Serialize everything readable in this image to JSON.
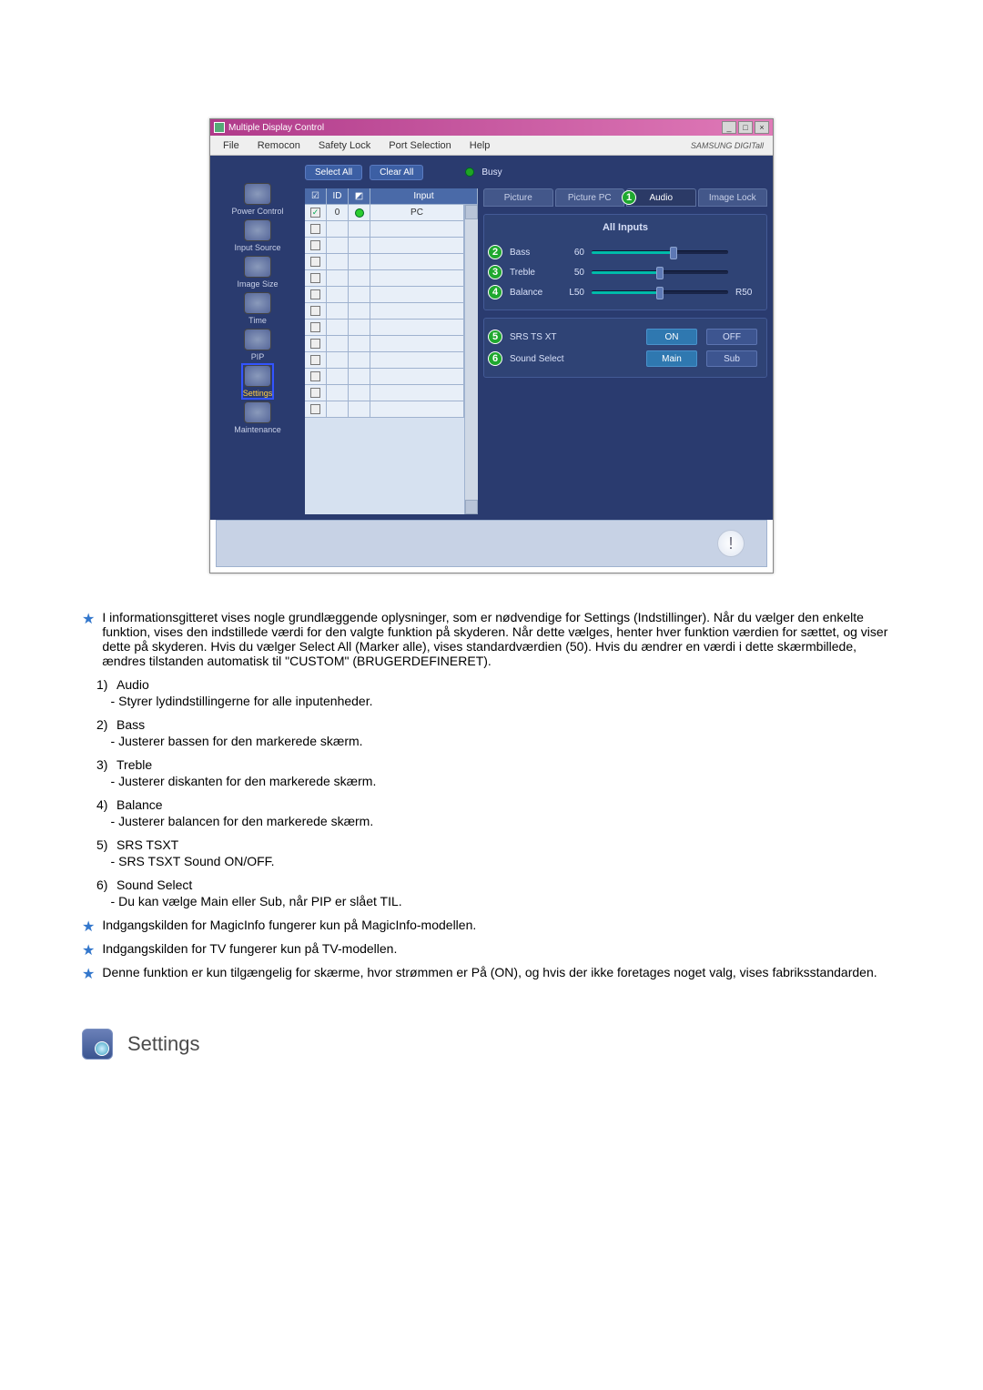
{
  "window_title": "Multiple Display Control",
  "menubar": [
    "File",
    "Remocon",
    "Safety Lock",
    "Port Selection",
    "Help"
  ],
  "brand_text": "SAMSUNG DIGITall",
  "toolbar": {
    "select_all": "Select All",
    "clear_all": "Clear All",
    "busy_label": "Busy"
  },
  "sidebar": [
    {
      "key": "power",
      "label": "Power Control"
    },
    {
      "key": "input",
      "label": "Input Source"
    },
    {
      "key": "image",
      "label": "Image Size"
    },
    {
      "key": "time",
      "label": "Time"
    },
    {
      "key": "pip",
      "label": "PIP"
    },
    {
      "key": "settings",
      "label": "Settings"
    },
    {
      "key": "maintenance",
      "label": "Maintenance"
    }
  ],
  "sidebar_selected": "settings",
  "grid": {
    "columns": [
      "",
      "ID",
      "",
      "Input"
    ],
    "rows": [
      {
        "checked": true,
        "id": "0",
        "status": true,
        "input": "PC"
      },
      {
        "checked": false,
        "id": "",
        "status": false,
        "input": ""
      },
      {
        "checked": false,
        "id": "",
        "status": false,
        "input": ""
      },
      {
        "checked": false,
        "id": "",
        "status": false,
        "input": ""
      },
      {
        "checked": false,
        "id": "",
        "status": false,
        "input": ""
      },
      {
        "checked": false,
        "id": "",
        "status": false,
        "input": ""
      },
      {
        "checked": false,
        "id": "",
        "status": false,
        "input": ""
      },
      {
        "checked": false,
        "id": "",
        "status": false,
        "input": ""
      },
      {
        "checked": false,
        "id": "",
        "status": false,
        "input": ""
      },
      {
        "checked": false,
        "id": "",
        "status": false,
        "input": ""
      },
      {
        "checked": false,
        "id": "",
        "status": false,
        "input": ""
      },
      {
        "checked": false,
        "id": "",
        "status": false,
        "input": ""
      },
      {
        "checked": false,
        "id": "",
        "status": false,
        "input": ""
      }
    ]
  },
  "tabs": [
    "Picture",
    "Picture PC",
    "Audio",
    "Image Lock"
  ],
  "active_tab": 2,
  "panel": {
    "heading": "All Inputs",
    "sliders": [
      {
        "num": "2",
        "label": "Bass",
        "value": 60,
        "pct": 60
      },
      {
        "num": "3",
        "label": "Treble",
        "value": 50,
        "pct": 50
      },
      {
        "num": "4",
        "label": "Balance",
        "value": "L50",
        "pct": 50,
        "right_label": "R50"
      }
    ],
    "toggles": [
      {
        "num": "5",
        "label": "SRS TS XT",
        "opt_a": "ON",
        "opt_b": "OFF",
        "active_idx": 0
      },
      {
        "num": "6",
        "label": "Sound Select",
        "opt_a": "Main",
        "opt_b": "Sub",
        "active_idx": 0
      }
    ]
  },
  "callout_on_tab": {
    "num": "1",
    "tab_index": 2
  },
  "doc": {
    "intro": "I informationsgitteret vises nogle grundlæggende oplysninger, som er nødvendige for Settings (Indstillinger). Når du vælger den enkelte funktion, vises den indstillede værdi for den valgte funktion på skyderen. Når dette vælges, henter hver funktion værdien for sættet, og viser dette på skyderen. Hvis du vælger Select All (Marker alle), vises standardværdien (50). Hvis du ændrer en værdi i dette skærmbillede, ændres tilstanden automatisk til \"CUSTOM\" (BRUGERDEFINERET).",
    "items": [
      {
        "n": "1)",
        "title": "Audio",
        "desc": "- Styrer lydindstillingerne for alle inputenheder."
      },
      {
        "n": "2)",
        "title": "Bass",
        "desc": "- Justerer bassen for den markerede skærm."
      },
      {
        "n": "3)",
        "title": "Treble",
        "desc": "- Justerer diskanten for den markerede skærm."
      },
      {
        "n": "4)",
        "title": "Balance",
        "desc": "- Justerer balancen for den markerede skærm."
      },
      {
        "n": "5)",
        "title": "SRS TSXT",
        "desc": "- SRS TSXT Sound ON/OFF."
      },
      {
        "n": "6)",
        "title": "Sound Select",
        "desc": "- Du kan vælge Main eller Sub, når PIP er slået TIL."
      }
    ],
    "notes": [
      "Indgangskilden for MagicInfo fungerer kun på MagicInfo-modellen.",
      "Indgangskilden for TV fungerer kun på TV-modellen.",
      "Denne funktion er kun tilgængelig for skærme, hvor strømmen er På (ON), og hvis der ikke foretages noget valg, vises fabriksstandarden."
    ],
    "section_title": "Settings"
  },
  "colors": {
    "titlebar_start": "#b03a8a",
    "titlebar_end": "#e07ab8",
    "app_bg": "#2a3b6f",
    "panel_bg": "#2f4375",
    "button_bg": "#3c5fa4",
    "slider_fill": "#00bbaa",
    "green_circle": "#1fa82f"
  }
}
